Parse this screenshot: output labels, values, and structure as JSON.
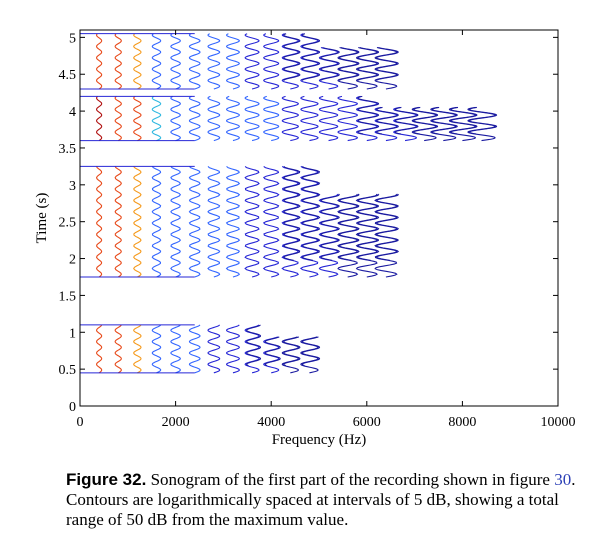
{
  "chart_data": {
    "type": "contour",
    "title": "",
    "xlabel": "Frequency (Hz)",
    "ylabel": "Time  (s)",
    "xlim": [
      0,
      10000
    ],
    "ylim": [
      0,
      5.1
    ],
    "xticks": [
      0,
      2000,
      4000,
      6000,
      8000,
      10000
    ],
    "yticks": [
      0,
      0.5,
      1,
      1.5,
      2,
      2.5,
      3,
      3.5,
      4,
      4.5,
      5
    ],
    "grid": false,
    "contour_levels_db": [
      -50,
      -45,
      -40,
      -35,
      -30,
      -25,
      -20,
      -15,
      -10,
      -5,
      0
    ],
    "colors": [
      "#1a1aa0",
      "#2626d6",
      "#3366ff",
      "#2fb8e0",
      "#3cc58a",
      "#8ed33d",
      "#e0d022",
      "#f59a1c",
      "#e84a1a",
      "#b01010"
    ],
    "harmonic_spacing_hz": 400,
    "segments": [
      {
        "t_start": 0.45,
        "t_end": 1.1,
        "max_freq_hz": 4800
      },
      {
        "t_start": 1.75,
        "t_end": 3.25,
        "max_freq_hz": 6400
      },
      {
        "t_start": 3.6,
        "t_end": 4.2,
        "max_freq_hz": 8400
      },
      {
        "t_start": 4.3,
        "t_end": 5.05,
        "max_freq_hz": 6400
      }
    ]
  },
  "caption": {
    "label": "Figure 32.",
    "text_1": " Sonogram of the first part of the recording shown in figure ",
    "ref": "30",
    "text_2": ". Contours are logarithmically spaced at intervals of 5 dB, showing a total range of 50 dB from the maximum value."
  }
}
